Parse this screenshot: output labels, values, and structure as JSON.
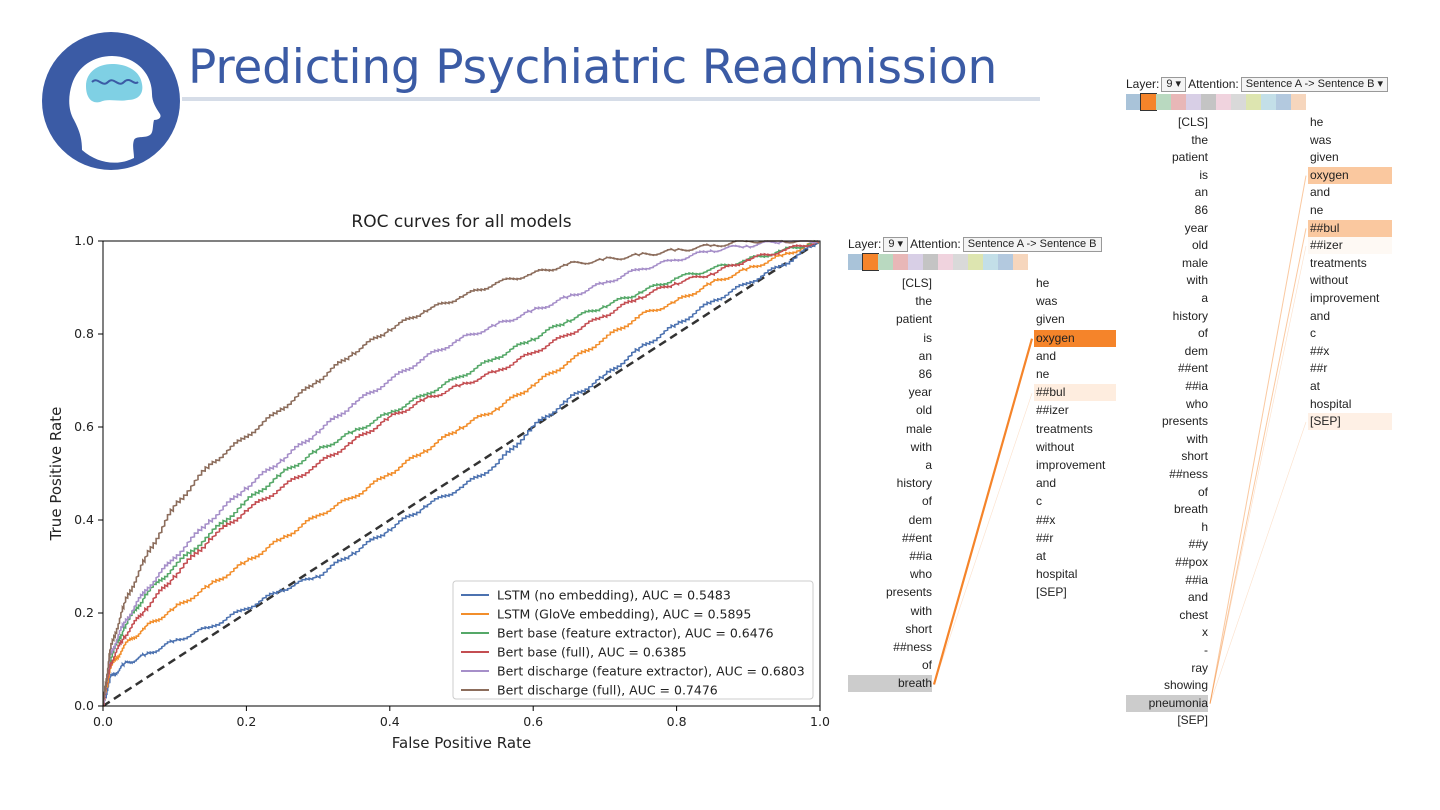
{
  "header": {
    "title": "Predicting Psychiatric Readmission"
  },
  "colors": {
    "title": "#3b5ba5",
    "logo_circle": "#3b5ba5",
    "logo_brain": "#7fd0e4",
    "highlight": "#f5842a"
  },
  "chart_data": {
    "type": "line",
    "title": "ROC curves for all models",
    "xlabel": "False Positive Rate",
    "ylabel": "True Positive Rate",
    "xlim": [
      0,
      1
    ],
    "ylim": [
      0,
      1
    ],
    "xticks": [
      "0.0",
      "0.2",
      "0.4",
      "0.6",
      "0.8",
      "1.0"
    ],
    "yticks": [
      "0.0",
      "0.2",
      "0.4",
      "0.6",
      "0.8",
      "1.0"
    ],
    "grid": false,
    "legend_position": "bottom-right",
    "diagonal": {
      "x": [
        0,
        1
      ],
      "y": [
        0,
        1
      ],
      "style": "dashed",
      "color": "#333333"
    },
    "series": [
      {
        "name": "LSTM (no embedding), AUC = 0.5483",
        "color": "#4c72b0",
        "x": [
          0,
          0.01,
          0.03,
          0.06,
          0.1,
          0.15,
          0.2,
          0.25,
          0.3,
          0.35,
          0.4,
          0.45,
          0.5,
          0.55,
          0.6,
          0.65,
          0.7,
          0.75,
          0.8,
          0.85,
          0.9,
          0.95,
          1.0
        ],
        "y": [
          0,
          0.06,
          0.09,
          0.11,
          0.14,
          0.17,
          0.21,
          0.25,
          0.28,
          0.33,
          0.38,
          0.43,
          0.47,
          0.52,
          0.6,
          0.66,
          0.71,
          0.77,
          0.82,
          0.87,
          0.91,
          0.95,
          1.0
        ]
      },
      {
        "name": "LSTM (GloVe embedding), AUC = 0.5895",
        "color": "#f28e2b",
        "x": [
          0,
          0.01,
          0.03,
          0.06,
          0.1,
          0.15,
          0.2,
          0.25,
          0.3,
          0.35,
          0.4,
          0.45,
          0.5,
          0.55,
          0.6,
          0.65,
          0.7,
          0.75,
          0.8,
          0.85,
          0.9,
          0.95,
          1.0
        ],
        "y": [
          0,
          0.08,
          0.13,
          0.17,
          0.21,
          0.26,
          0.31,
          0.36,
          0.41,
          0.45,
          0.5,
          0.55,
          0.6,
          0.64,
          0.69,
          0.74,
          0.79,
          0.84,
          0.87,
          0.91,
          0.94,
          0.97,
          1.0
        ]
      },
      {
        "name": "Bert base (feature extractor), AUC = 0.6476",
        "color": "#55a868",
        "x": [
          0,
          0.01,
          0.03,
          0.06,
          0.1,
          0.15,
          0.2,
          0.25,
          0.3,
          0.35,
          0.4,
          0.45,
          0.5,
          0.55,
          0.6,
          0.65,
          0.7,
          0.75,
          0.8,
          0.85,
          0.9,
          0.95,
          1.0
        ],
        "y": [
          0,
          0.1,
          0.17,
          0.24,
          0.3,
          0.37,
          0.44,
          0.5,
          0.55,
          0.59,
          0.63,
          0.67,
          0.71,
          0.75,
          0.79,
          0.83,
          0.86,
          0.89,
          0.92,
          0.94,
          0.96,
          0.98,
          1.0
        ]
      },
      {
        "name": "Bert base (full), AUC = 0.6385",
        "color": "#c44e52",
        "x": [
          0,
          0.01,
          0.03,
          0.06,
          0.1,
          0.15,
          0.2,
          0.25,
          0.3,
          0.35,
          0.4,
          0.45,
          0.5,
          0.55,
          0.6,
          0.65,
          0.7,
          0.75,
          0.8,
          0.85,
          0.9,
          0.95,
          1.0
        ],
        "y": [
          0,
          0.09,
          0.15,
          0.21,
          0.28,
          0.36,
          0.42,
          0.47,
          0.52,
          0.57,
          0.62,
          0.66,
          0.69,
          0.72,
          0.76,
          0.8,
          0.84,
          0.88,
          0.91,
          0.93,
          0.96,
          0.98,
          1.0
        ]
      },
      {
        "name": "Bert discharge (feature extractor), AUC = 0.6803",
        "color": "#a68fc9",
        "x": [
          0,
          0.01,
          0.03,
          0.06,
          0.1,
          0.15,
          0.2,
          0.25,
          0.3,
          0.35,
          0.4,
          0.45,
          0.5,
          0.55,
          0.6,
          0.65,
          0.7,
          0.75,
          0.8,
          0.85,
          0.9,
          0.95,
          1.0
        ],
        "y": [
          0,
          0.11,
          0.18,
          0.25,
          0.32,
          0.4,
          0.47,
          0.53,
          0.59,
          0.65,
          0.7,
          0.75,
          0.79,
          0.82,
          0.85,
          0.88,
          0.91,
          0.94,
          0.96,
          0.98,
          0.99,
          1.0,
          1.0
        ]
      },
      {
        "name": "Bert discharge (full), AUC = 0.7476",
        "color": "#8c6d5c",
        "x": [
          0,
          0.01,
          0.03,
          0.06,
          0.1,
          0.15,
          0.2,
          0.25,
          0.3,
          0.35,
          0.4,
          0.45,
          0.5,
          0.55,
          0.6,
          0.65,
          0.7,
          0.75,
          0.8,
          0.85,
          0.9,
          0.95,
          1.0
        ],
        "y": [
          0,
          0.12,
          0.22,
          0.32,
          0.43,
          0.52,
          0.58,
          0.64,
          0.7,
          0.76,
          0.81,
          0.85,
          0.88,
          0.91,
          0.93,
          0.95,
          0.96,
          0.97,
          0.98,
          0.99,
          1.0,
          1.0,
          1.0
        ]
      }
    ]
  },
  "attention_views": [
    {
      "layer_label": "Layer:",
      "layer_value": "9",
      "attention_label": "Attention:",
      "attention_value": "Sentence A -> Sentence B",
      "swatch_colors": [
        "#a9c3d9",
        "#f5842a",
        "#b9d9c0",
        "#e8b7b7",
        "#d8cfe6",
        "#c4c4c4",
        "#f0d3de",
        "#d9d9d9",
        "#dde5b0",
        "#c3dfe8",
        "#b3c9df",
        "#f6d6bd"
      ],
      "left_tokens": [
        "[CLS]",
        "the",
        "patient",
        "is",
        "an",
        "86",
        "year",
        "old",
        "male",
        "with",
        "a",
        "history",
        "of",
        "dem",
        "##ent",
        "##ia",
        "who",
        "presents",
        "with",
        "short",
        "##ness",
        "of",
        "breath"
      ],
      "right_tokens": [
        "he",
        "was",
        "given",
        "oxygen",
        "and",
        "ne",
        "##bul",
        "##izer",
        "treatments",
        "without",
        "improvement",
        "and",
        "c",
        "##x",
        "##r",
        "at",
        "hospital",
        "[SEP]"
      ],
      "selected_left": "breath",
      "right_weights": [
        0,
        0,
        0,
        1.0,
        0,
        0,
        0.15,
        0,
        0,
        0,
        0,
        0,
        0,
        0,
        0,
        0,
        0,
        0
      ]
    },
    {
      "layer_label": "Layer:",
      "layer_value": "9",
      "attention_label": "Attention:",
      "attention_value": "Sentence A -> Sentence B",
      "swatch_colors": [
        "#a9c3d9",
        "#f5842a",
        "#b9d9c0",
        "#e8b7b7",
        "#d8cfe6",
        "#c4c4c4",
        "#f0d3de",
        "#d9d9d9",
        "#dde5b0",
        "#c3dfe8",
        "#b3c9df",
        "#f6d6bd"
      ],
      "left_tokens": [
        "[CLS]",
        "the",
        "patient",
        "is",
        "an",
        "86",
        "year",
        "old",
        "male",
        "with",
        "a",
        "history",
        "of",
        "dem",
        "##ent",
        "##ia",
        "who",
        "presents",
        "with",
        "short",
        "##ness",
        "of",
        "breath",
        "h",
        "##y",
        "##pox",
        "##ia",
        "and",
        "chest",
        "x",
        "-",
        "ray",
        "showing",
        "pneumonia",
        "[SEP]"
      ],
      "right_tokens": [
        "he",
        "was",
        "given",
        "oxygen",
        "and",
        "ne",
        "##bul",
        "##izer",
        "treatments",
        "without",
        "improvement",
        "and",
        "c",
        "##x",
        "##r",
        "at",
        "hospital",
        "[SEP]"
      ],
      "selected_left": "pneumonia",
      "right_weights": [
        0,
        0,
        0,
        0.45,
        0,
        0,
        0.45,
        0.05,
        0,
        0,
        0,
        0,
        0,
        0,
        0,
        0,
        0,
        0.12
      ]
    }
  ]
}
